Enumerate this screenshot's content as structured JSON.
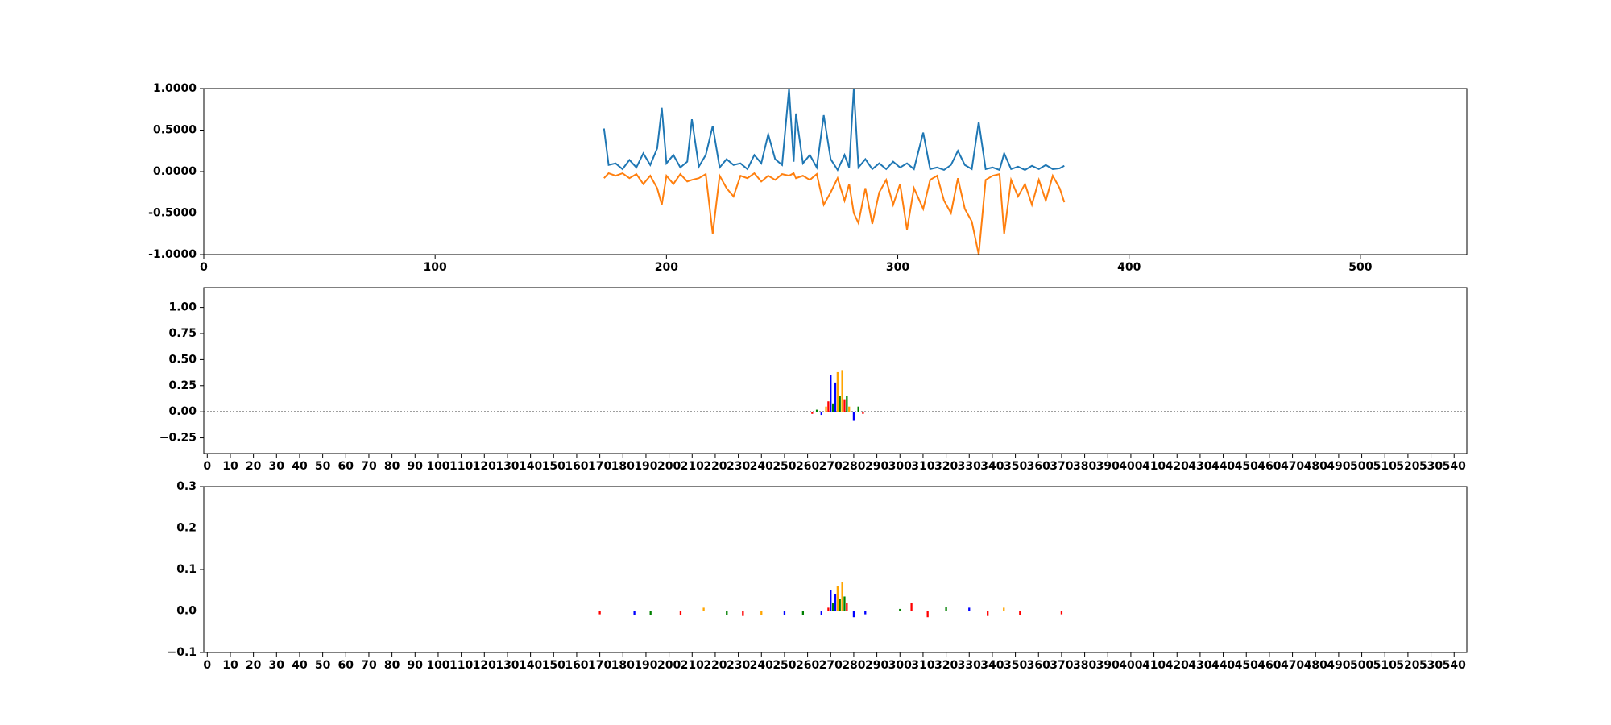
{
  "chart_data": [
    {
      "type": "line",
      "x": [
        173,
        175,
        178,
        181,
        184,
        187,
        190,
        193,
        196,
        198,
        200,
        203,
        206,
        209,
        211,
        214,
        217,
        220,
        223,
        226,
        229,
        232,
        235,
        238,
        241,
        244,
        247,
        250,
        253,
        255,
        256,
        259,
        262,
        265,
        268,
        271,
        274,
        277,
        279,
        281,
        283,
        286,
        289,
        292,
        295,
        298,
        301,
        304,
        307,
        311,
        314,
        317,
        320,
        323,
        326,
        329,
        332,
        335,
        338,
        341,
        344,
        346,
        349,
        352,
        355,
        358,
        361,
        364,
        367,
        370,
        372
      ],
      "series": [
        {
          "color": "#1f77b4",
          "values": [
            0.52,
            0.08,
            0.1,
            0.03,
            0.14,
            0.05,
            0.22,
            0.08,
            0.28,
            0.77,
            0.1,
            0.2,
            0.05,
            0.12,
            0.63,
            0.06,
            0.2,
            0.55,
            0.05,
            0.15,
            0.08,
            0.1,
            0.03,
            0.2,
            0.1,
            0.45,
            0.15,
            0.08,
            1.0,
            0.12,
            0.7,
            0.1,
            0.2,
            0.05,
            0.68,
            0.15,
            0.02,
            0.2,
            0.05,
            1.0,
            0.05,
            0.15,
            0.03,
            0.1,
            0.03,
            0.12,
            0.05,
            0.1,
            0.03,
            0.47,
            0.03,
            0.05,
            0.02,
            0.08,
            0.25,
            0.08,
            0.03,
            0.6,
            0.03,
            0.05,
            0.02,
            0.22,
            0.03,
            0.06,
            0.02,
            0.07,
            0.03,
            0.08,
            0.03,
            0.04,
            0.07
          ]
        },
        {
          "color": "#ff7f0e",
          "values": [
            -0.08,
            -0.02,
            -0.05,
            -0.02,
            -0.08,
            -0.03,
            -0.15,
            -0.05,
            -0.2,
            -0.4,
            -0.05,
            -0.15,
            -0.03,
            -0.12,
            -0.1,
            -0.08,
            -0.03,
            -0.75,
            -0.05,
            -0.2,
            -0.3,
            -0.05,
            -0.08,
            -0.02,
            -0.12,
            -0.05,
            -0.1,
            -0.03,
            -0.05,
            -0.02,
            -0.08,
            -0.05,
            -0.1,
            -0.03,
            -0.4,
            -0.25,
            -0.08,
            -0.35,
            -0.15,
            -0.5,
            -0.62,
            -0.2,
            -0.63,
            -0.25,
            -0.1,
            -0.4,
            -0.15,
            -0.7,
            -0.2,
            -0.45,
            -0.1,
            -0.05,
            -0.35,
            -0.5,
            -0.08,
            -0.45,
            -0.6,
            -1.0,
            -0.1,
            -0.05,
            -0.03,
            -0.75,
            -0.1,
            -0.3,
            -0.15,
            -0.4,
            -0.1,
            -0.35,
            -0.05,
            -0.2,
            -0.37
          ]
        }
      ],
      "xlim": [
        0,
        546
      ],
      "xticks": [
        0,
        100,
        200,
        300,
        400,
        500
      ],
      "ylim": [
        -1,
        1
      ],
      "yticks": [
        {
          "value": -1,
          "label": "-1.0000"
        },
        {
          "value": -0.5,
          "label": "-0.5000"
        },
        {
          "value": 0,
          "label": "0.0000"
        },
        {
          "value": 0.5,
          "label": "0.5000"
        },
        {
          "value": 1,
          "label": "1.0000"
        }
      ]
    },
    {
      "type": "bar",
      "x": [
        262,
        264,
        266,
        268,
        269,
        270,
        271,
        272,
        273,
        274,
        275,
        276,
        277,
        278,
        280,
        282,
        284
      ],
      "values": [
        -0.02,
        0.02,
        -0.03,
        0.05,
        0.1,
        0.35,
        0.08,
        0.28,
        0.38,
        0.15,
        0.4,
        0.12,
        0.15,
        0.05,
        -0.08,
        0.05,
        -0.02
      ],
      "colors": [
        "#ff0000",
        "#008000",
        "#0000ff",
        "#ffa500",
        "#ff0000",
        "#0000ff",
        "#008000",
        "#0000ff",
        "#ffa500",
        "#008000",
        "#ffa500",
        "#ff0000",
        "#008000",
        "#ffa500",
        "#0000ff",
        "#008000",
        "#ff0000"
      ],
      "xlim": [
        -1.5,
        545.5
      ],
      "xticks": [
        0,
        10,
        20,
        30,
        40,
        50,
        60,
        70,
        80,
        90,
        100,
        110,
        120,
        130,
        140,
        150,
        160,
        170,
        180,
        190,
        200,
        210,
        220,
        230,
        240,
        250,
        260,
        270,
        280,
        290,
        300,
        310,
        320,
        330,
        340,
        350,
        360,
        370,
        380,
        390,
        400,
        410,
        420,
        430,
        440,
        450,
        460,
        470,
        480,
        490,
        500,
        510,
        520,
        530,
        540
      ],
      "ylim": [
        -0.4,
        1.19
      ],
      "yticks": [
        {
          "value": -0.25,
          "label": "−0.25"
        },
        {
          "value": 0,
          "label": "0.00"
        },
        {
          "value": 0.25,
          "label": "0.25"
        },
        {
          "value": 0.5,
          "label": "0.50"
        },
        {
          "value": 0.75,
          "label": "0.75"
        },
        {
          "value": 1,
          "label": "1.00"
        }
      ]
    },
    {
      "type": "bar",
      "x": [
        170,
        185,
        192,
        205,
        215,
        225,
        232,
        240,
        250,
        258,
        266,
        269,
        270,
        271,
        272,
        273,
        274,
        275,
        276,
        277,
        280,
        285,
        300,
        305,
        312,
        320,
        330,
        338,
        345,
        352,
        370
      ],
      "values": [
        -0.008,
        -0.01,
        -0.01,
        -0.01,
        0.008,
        -0.01,
        -0.012,
        -0.01,
        -0.01,
        -0.01,
        -0.01,
        0.008,
        0.05,
        0.02,
        0.04,
        0.06,
        0.03,
        0.07,
        0.035,
        0.02,
        -0.015,
        -0.008,
        0.005,
        0.02,
        -0.015,
        0.01,
        0.008,
        -0.012,
        0.008,
        -0.01,
        -0.008
      ],
      "colors": [
        "#ff0000",
        "#0000ff",
        "#008000",
        "#ff0000",
        "#ffa500",
        "#008000",
        "#ff0000",
        "#ffa500",
        "#0000ff",
        "#008000",
        "#0000ff",
        "#ff0000",
        "#0000ff",
        "#008000",
        "#0000ff",
        "#ffa500",
        "#008000",
        "#ffa500",
        "#008000",
        "#ff0000",
        "#0000ff",
        "#0000ff",
        "#008000",
        "#ff0000",
        "#ff0000",
        "#008000",
        "#0000ff",
        "#ff0000",
        "#ffa500",
        "#ff0000",
        "#ff0000"
      ],
      "xlim": [
        -1.5,
        545.5
      ],
      "xticks": [
        0,
        10,
        20,
        30,
        40,
        50,
        60,
        70,
        80,
        90,
        100,
        110,
        120,
        130,
        140,
        150,
        160,
        170,
        180,
        190,
        200,
        210,
        220,
        230,
        240,
        250,
        260,
        270,
        280,
        290,
        300,
        310,
        320,
        330,
        340,
        350,
        360,
        370,
        380,
        390,
        400,
        410,
        420,
        430,
        440,
        450,
        460,
        470,
        480,
        490,
        500,
        510,
        520,
        530,
        540
      ],
      "ylim": [
        -0.1,
        0.3
      ],
      "yticks": [
        {
          "value": -0.1,
          "label": "−0.1"
        },
        {
          "value": 0,
          "label": "0.0"
        },
        0.1,
        0.2,
        0.3
      ]
    }
  ]
}
